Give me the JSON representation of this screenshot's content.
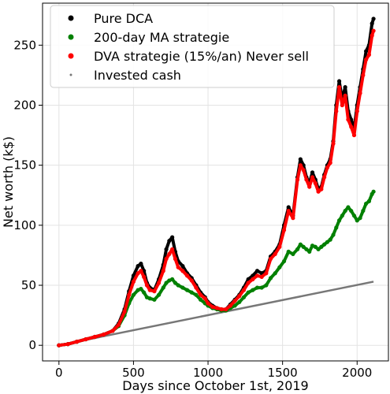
{
  "chart_data": {
    "type": "scatter",
    "title": "",
    "xlabel": "Days since October 1st, 2019",
    "ylabel": "Net worth (k$)",
    "xlim": [
      -110,
      2210
    ],
    "ylim": [
      -13,
      285
    ],
    "xticks": [
      0,
      500,
      1000,
      1500,
      2000
    ],
    "yticks": [
      0,
      50,
      100,
      150,
      200,
      250
    ],
    "grid": true,
    "legend_position": "top-left",
    "series": [
      {
        "name": "Pure DCA",
        "color": "#000000",
        "marker": "dot",
        "x": [
          0,
          60,
          120,
          180,
          240,
          300,
          360,
          400,
          440,
          470,
          500,
          530,
          550,
          570,
          590,
          610,
          640,
          670,
          700,
          720,
          740,
          760,
          780,
          800,
          830,
          860,
          890,
          920,
          950,
          980,
          1000,
          1030,
          1060,
          1090,
          1120,
          1150,
          1180,
          1210,
          1240,
          1270,
          1300,
          1330,
          1360,
          1390,
          1420,
          1450,
          1480,
          1510,
          1540,
          1570,
          1600,
          1620,
          1640,
          1660,
          1680,
          1700,
          1720,
          1740,
          1760,
          1780,
          1800,
          1820,
          1840,
          1860,
          1880,
          1900,
          1920,
          1940,
          1960,
          1980,
          2000,
          2020,
          2040,
          2060,
          2080,
          2100,
          2110
        ],
        "y": [
          0,
          1,
          3,
          5,
          7,
          9,
          12,
          18,
          30,
          45,
          58,
          66,
          68,
          62,
          52,
          48,
          46,
          55,
          67,
          80,
          87,
          90,
          78,
          70,
          66,
          60,
          56,
          50,
          44,
          40,
          36,
          33,
          31,
          30,
          30,
          34,
          38,
          42,
          48,
          55,
          58,
          62,
          60,
          62,
          74,
          78,
          84,
          100,
          115,
          108,
          140,
          155,
          150,
          140,
          135,
          144,
          138,
          130,
          132,
          142,
          150,
          155,
          170,
          200,
          220,
          205,
          215,
          195,
          188,
          180,
          200,
          215,
          230,
          245,
          250,
          268,
          272
        ]
      },
      {
        "name": "200-day MA strategie",
        "color": "#008000",
        "marker": "dot",
        "x": [
          0,
          60,
          120,
          180,
          240,
          300,
          360,
          400,
          440,
          470,
          500,
          530,
          550,
          570,
          590,
          610,
          640,
          670,
          700,
          720,
          740,
          760,
          780,
          800,
          830,
          860,
          890,
          920,
          950,
          980,
          1000,
          1030,
          1060,
          1090,
          1120,
          1150,
          1180,
          1210,
          1240,
          1270,
          1300,
          1330,
          1360,
          1390,
          1420,
          1450,
          1480,
          1510,
          1540,
          1570,
          1600,
          1620,
          1640,
          1660,
          1680,
          1700,
          1720,
          1740,
          1760,
          1780,
          1800,
          1820,
          1840,
          1860,
          1880,
          1900,
          1920,
          1940,
          1960,
          1980,
          2000,
          2020,
          2040,
          2060,
          2080,
          2100,
          2110
        ],
        "y": [
          0,
          1,
          3,
          5,
          7,
          9,
          12,
          16,
          25,
          35,
          42,
          46,
          47,
          44,
          40,
          39,
          38,
          42,
          48,
          52,
          54,
          55,
          52,
          50,
          48,
          46,
          44,
          42,
          38,
          35,
          33,
          31,
          30,
          29,
          29,
          31,
          33,
          36,
          40,
          44,
          46,
          48,
          48,
          50,
          56,
          60,
          65,
          70,
          78,
          76,
          80,
          84,
          82,
          80,
          78,
          83,
          82,
          80,
          82,
          84,
          86,
          88,
          92,
          98,
          104,
          108,
          112,
          115,
          112,
          108,
          104,
          106,
          112,
          118,
          120,
          126,
          128
        ]
      },
      {
        "name": "DVA strategie (15%/an) Never sell",
        "color": "#ff0000",
        "marker": "dot",
        "x": [
          0,
          60,
          120,
          180,
          240,
          300,
          360,
          400,
          440,
          470,
          500,
          530,
          550,
          570,
          590,
          610,
          640,
          670,
          700,
          720,
          740,
          760,
          780,
          800,
          830,
          860,
          890,
          920,
          950,
          980,
          1000,
          1030,
          1060,
          1090,
          1120,
          1150,
          1180,
          1210,
          1240,
          1270,
          1300,
          1330,
          1360,
          1390,
          1420,
          1450,
          1480,
          1510,
          1540,
          1570,
          1600,
          1620,
          1640,
          1660,
          1680,
          1700,
          1720,
          1740,
          1760,
          1780,
          1800,
          1820,
          1840,
          1860,
          1880,
          1900,
          1920,
          1940,
          1960,
          1980,
          2000,
          2020,
          2040,
          2060,
          2080,
          2100,
          2110
        ],
        "y": [
          0,
          1,
          3,
          5,
          7,
          9,
          12,
          17,
          28,
          42,
          53,
          60,
          62,
          57,
          50,
          46,
          45,
          52,
          62,
          72,
          76,
          80,
          72,
          65,
          62,
          58,
          54,
          48,
          42,
          39,
          35,
          32,
          31,
          30,
          30,
          33,
          37,
          41,
          46,
          52,
          55,
          58,
          57,
          60,
          72,
          76,
          82,
          96,
          112,
          106,
          138,
          150,
          146,
          138,
          132,
          140,
          135,
          128,
          130,
          140,
          148,
          152,
          168,
          195,
          215,
          200,
          208,
          188,
          182,
          175,
          195,
          210,
          225,
          238,
          242,
          258,
          262
        ]
      },
      {
        "name": "Invested cash",
        "color": "#777777",
        "marker": "line",
        "x": [
          0,
          2110
        ],
        "y": [
          0,
          53
        ]
      }
    ]
  }
}
